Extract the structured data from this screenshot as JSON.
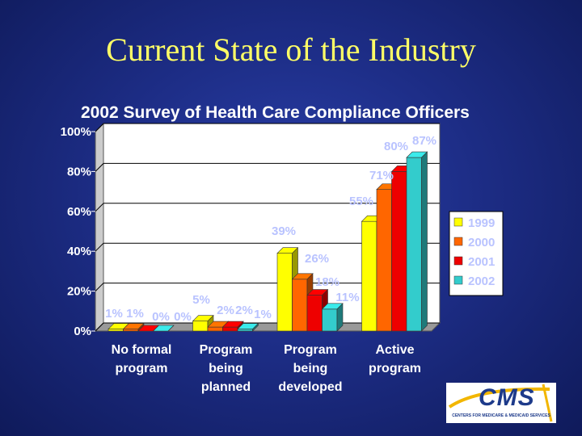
{
  "slide": {
    "title": "Current State of the Industry"
  },
  "logo": {
    "text": "CMS",
    "subtext": "CENTERS FOR MEDICARE & MEDICAID SERVICES"
  },
  "colors": {
    "1999": "#ffff00",
    "2000": "#ff6600",
    "2001": "#ee0000",
    "2002": "#33cccc"
  },
  "chart_data": {
    "type": "bar",
    "title": "2002 Survey of Health Care Compliance Officers",
    "categories": [
      [
        "No formal",
        "program"
      ],
      [
        "Program",
        "being",
        "planned"
      ],
      [
        "Program",
        "being",
        "developed"
      ],
      [
        "Active",
        "program"
      ]
    ],
    "series": [
      {
        "name": "1999",
        "values": [
          1,
          5,
          39,
          55
        ]
      },
      {
        "name": "2000",
        "values": [
          1,
          2,
          26,
          71
        ]
      },
      {
        "name": "2001",
        "values": [
          0,
          2,
          18,
          80
        ]
      },
      {
        "name": "2002",
        "values": [
          0,
          1,
          11,
          87
        ]
      }
    ],
    "data_labels": [
      [
        "1%",
        "1%",
        "0%",
        "0%"
      ],
      [
        "5%",
        "2%",
        "2%",
        "1%"
      ],
      [
        "39%",
        "26%",
        "18%",
        "11%"
      ],
      [
        "55%",
        "71%",
        "80%",
        "87%"
      ]
    ],
    "ylim": [
      0,
      100
    ],
    "yticks": [
      "0%",
      "20%",
      "40%",
      "60%",
      "80%",
      "100%"
    ],
    "legend": [
      "1999",
      "2000",
      "2001",
      "2002"
    ],
    "legend_position": "right"
  }
}
